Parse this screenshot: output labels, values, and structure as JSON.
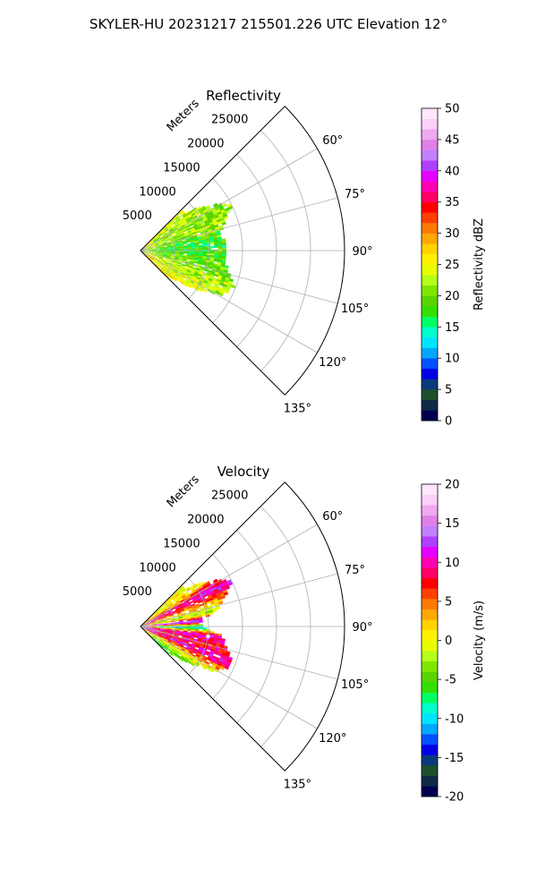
{
  "figure": {
    "title": "SKYLER-HU  20231217  215501.226 UTC Elevation 12°"
  },
  "chart_data": [
    {
      "type": "heatmap",
      "projection": "polar-sector",
      "title": "Reflectivity",
      "radial_label": "Meters",
      "radial_ticks": [
        5000,
        10000,
        15000,
        20000,
        25000
      ],
      "radial_range": [
        0,
        30000
      ],
      "azimuth_range_deg": [
        45,
        135
      ],
      "azimuth_ticks_deg": [
        60,
        75,
        90,
        105,
        120,
        135
      ],
      "grid": true,
      "data_extent_m": 16000,
      "colorbar": {
        "label": "Reflectivity dBZ",
        "range": [
          0,
          50
        ],
        "ticks": [
          0,
          5,
          10,
          15,
          20,
          25,
          30,
          35,
          40,
          45,
          50
        ],
        "colors": [
          "#00004f",
          "#102a45",
          "#1f4e2c",
          "#0a3a7a",
          "#0000e6",
          "#0050ff",
          "#00a8ff",
          "#00e5ff",
          "#00ffcc",
          "#00ff66",
          "#33e000",
          "#59d400",
          "#80e600",
          "#b5ff1a",
          "#e6ff00",
          "#fff200",
          "#ffd400",
          "#ffa800",
          "#ff7a00",
          "#ff4000",
          "#ff0000",
          "#ff0066",
          "#ff00b4",
          "#e600ff",
          "#b040ff",
          "#c080ff",
          "#e080e8",
          "#f0a8f0",
          "#f8d0f8",
          "#fde8fd"
        ]
      },
      "profile": [
        {
          "az": 48,
          "value": 24,
          "extent": 0.52
        },
        {
          "az": 55,
          "value": 22,
          "extent": 0.72
        },
        {
          "az": 62,
          "value": 21,
          "extent": 0.95
        },
        {
          "az": 70,
          "value": 22,
          "extent": 0.82
        },
        {
          "az": 78,
          "value": 19,
          "extent": 0.75
        },
        {
          "az": 86,
          "value": 18,
          "extent": 0.8
        },
        {
          "az": 94,
          "value": 19,
          "extent": 0.78
        },
        {
          "az": 102,
          "value": 20,
          "extent": 0.82
        },
        {
          "az": 110,
          "value": 22,
          "extent": 0.92
        },
        {
          "az": 118,
          "value": 23,
          "extent": 0.85
        },
        {
          "az": 126,
          "value": 25,
          "extent": 0.55
        },
        {
          "az": 133,
          "value": 26,
          "extent": 0.35
        }
      ]
    },
    {
      "type": "heatmap",
      "projection": "polar-sector",
      "title": "Velocity",
      "radial_label": "Meters",
      "radial_ticks": [
        5000,
        10000,
        15000,
        20000,
        25000
      ],
      "radial_range": [
        0,
        30000
      ],
      "azimuth_range_deg": [
        45,
        135
      ],
      "azimuth_ticks_deg": [
        60,
        75,
        90,
        105,
        120,
        135
      ],
      "grid": true,
      "data_extent_m": 16000,
      "colorbar": {
        "label": "Velocity (m/s)",
        "range": [
          -20,
          20
        ],
        "ticks": [
          -20,
          -15,
          -10,
          -5,
          0,
          5,
          10,
          15,
          20
        ],
        "colors": [
          "#00004f",
          "#102a45",
          "#1f4e2c",
          "#0a3a7a",
          "#0000e6",
          "#0050ff",
          "#00a8ff",
          "#00e5ff",
          "#00ffcc",
          "#00ff66",
          "#33e000",
          "#59d400",
          "#80e600",
          "#b5ff1a",
          "#e6ff00",
          "#fff200",
          "#ffd400",
          "#ffa800",
          "#ff7a00",
          "#ff4000",
          "#ff0000",
          "#ff0066",
          "#ff00b4",
          "#e600ff",
          "#b040ff",
          "#c080ff",
          "#e080e8",
          "#f0a8f0",
          "#f8d0f8",
          "#fde8fd"
        ]
      },
      "profile": [
        {
          "az": 48,
          "value": 0,
          "extent": 0.52
        },
        {
          "az": 55,
          "value": 2,
          "extent": 0.72
        },
        {
          "az": 62,
          "value": 11,
          "extent": 0.95
        },
        {
          "az": 70,
          "value": 4,
          "extent": 0.82
        },
        {
          "az": 78,
          "value": -3,
          "extent": 0.7
        },
        {
          "az": 84,
          "value": 16,
          "extent": 0.55
        },
        {
          "az": 90,
          "value": -11,
          "extent": 0.6
        },
        {
          "az": 96,
          "value": 10,
          "extent": 0.75
        },
        {
          "az": 104,
          "value": 8,
          "extent": 0.82
        },
        {
          "az": 112,
          "value": 10,
          "extent": 0.92
        },
        {
          "az": 120,
          "value": 1,
          "extent": 0.8
        },
        {
          "az": 128,
          "value": -4,
          "extent": 0.5
        },
        {
          "az": 133,
          "value": -5,
          "extent": 0.35
        }
      ]
    }
  ]
}
